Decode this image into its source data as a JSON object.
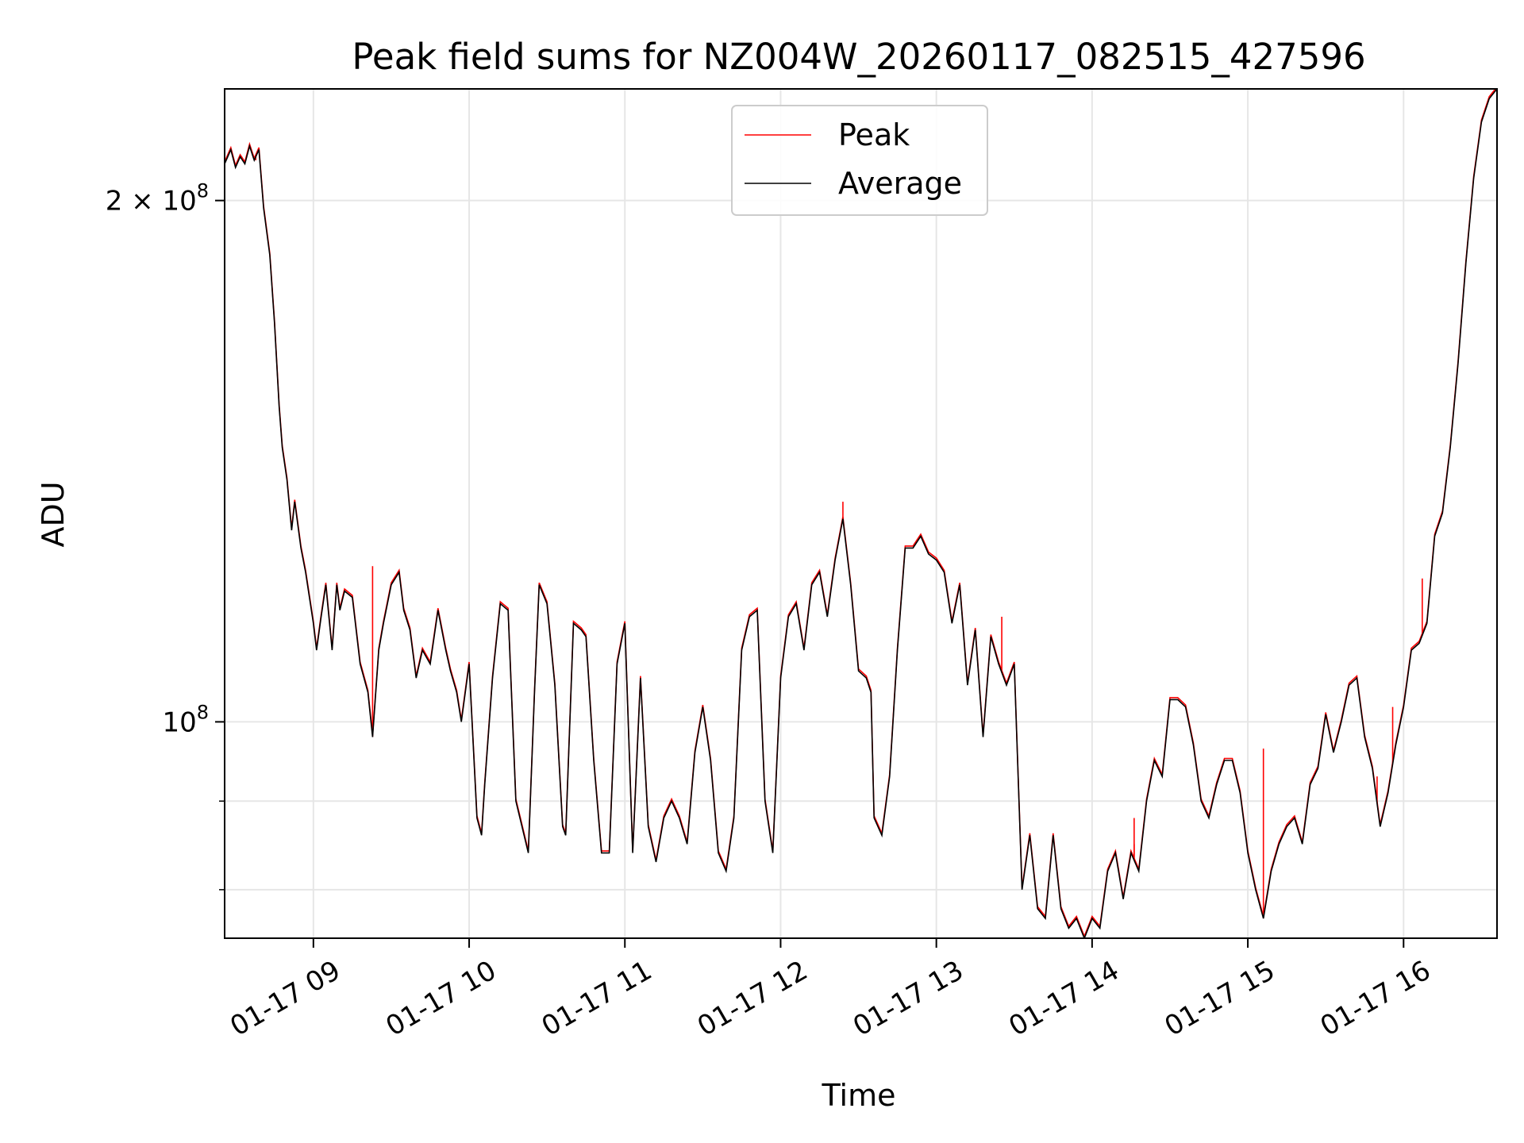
{
  "chart_data": {
    "type": "line",
    "title": "Peak field sums for NZ004W_20260117_082515_427596",
    "xlabel": "Time",
    "ylabel": "ADU",
    "yscale": "log",
    "xlim": [
      8.43,
      16.6
    ],
    "ylim": [
      75000000,
      232000000
    ],
    "grid": true,
    "legend": {
      "placement": "top-center",
      "entries": [
        "Peak",
        "Average"
      ]
    },
    "x_ticks": [
      {
        "value": 9,
        "label": "01-17 09"
      },
      {
        "value": 10,
        "label": "01-17 10"
      },
      {
        "value": 11,
        "label": "01-17 11"
      },
      {
        "value": 12,
        "label": "01-17 12"
      },
      {
        "value": 13,
        "label": "01-17 13"
      },
      {
        "value": 14,
        "label": "01-17 14"
      },
      {
        "value": 15,
        "label": "01-17 15"
      },
      {
        "value": 16,
        "label": "01-17 16"
      }
    ],
    "y_ticks": [
      {
        "value": 200000000,
        "label": "2 × 10",
        "exp": "8"
      },
      {
        "value": 100000000,
        "label": "10",
        "exp": "8"
      }
    ],
    "y_minor_ticks": [
      90000000,
      80000000
    ],
    "series": [
      {
        "name": "Peak",
        "color": "#ff0000",
        "spikes": [
          [
            8.63,
            211000000
          ],
          [
            9.38,
            123000000
          ],
          [
            12.4,
            134000000
          ],
          [
            13.42,
            115000000
          ],
          [
            14.27,
            88000000
          ],
          [
            14.27,
            85000000
          ],
          [
            15.1,
            96500000
          ],
          [
            15.83,
            93000000
          ],
          [
            15.93,
            102000000
          ],
          [
            16.12,
            121000000
          ]
        ]
      },
      {
        "name": "Average",
        "color": "#000000",
        "x": [
          8.43,
          8.47,
          8.5,
          8.53,
          8.56,
          8.59,
          8.62,
          8.65,
          8.68,
          8.72,
          8.75,
          8.78,
          8.8,
          8.83,
          8.86,
          8.88,
          8.92,
          8.95,
          9.0,
          9.02,
          9.05,
          9.08,
          9.12,
          9.15,
          9.17,
          9.2,
          9.25,
          9.3,
          9.35,
          9.38,
          9.42,
          9.45,
          9.5,
          9.55,
          9.58,
          9.62,
          9.66,
          9.7,
          9.75,
          9.8,
          9.85,
          9.88,
          9.92,
          9.95,
          10.0,
          10.05,
          10.08,
          10.1,
          10.15,
          10.2,
          10.25,
          10.3,
          10.38,
          10.42,
          10.45,
          10.5,
          10.55,
          10.6,
          10.62,
          10.67,
          10.72,
          10.75,
          10.8,
          10.85,
          10.9,
          10.95,
          11.0,
          11.05,
          11.1,
          11.15,
          11.2,
          11.25,
          11.3,
          11.35,
          11.4,
          11.45,
          11.5,
          11.55,
          11.6,
          11.65,
          11.7,
          11.75,
          11.8,
          11.85,
          11.9,
          11.95,
          12.0,
          12.05,
          12.1,
          12.15,
          12.2,
          12.25,
          12.3,
          12.35,
          12.4,
          12.45,
          12.5,
          12.55,
          12.58,
          12.6,
          12.65,
          12.7,
          12.75,
          12.8,
          12.85,
          12.9,
          12.95,
          13.0,
          13.05,
          13.1,
          13.15,
          13.2,
          13.25,
          13.3,
          13.35,
          13.4,
          13.45,
          13.5,
          13.55,
          13.6,
          13.65,
          13.7,
          13.75,
          13.8,
          13.85,
          13.9,
          13.95,
          14.0,
          14.05,
          14.1,
          14.15,
          14.2,
          14.25,
          14.3,
          14.35,
          14.4,
          14.45,
          14.5,
          14.55,
          14.6,
          14.65,
          14.7,
          14.75,
          14.8,
          14.85,
          14.9,
          14.95,
          15.0,
          15.05,
          15.1,
          15.15,
          15.2,
          15.25,
          15.3,
          15.35,
          15.4,
          15.45,
          15.5,
          15.55,
          15.6,
          15.65,
          15.7,
          15.75,
          15.8,
          15.85,
          15.9,
          15.95,
          16.0,
          16.05,
          16.1,
          16.15,
          16.2,
          16.25,
          16.3,
          16.35,
          16.4,
          16.45,
          16.5,
          16.55,
          16.6
        ],
        "values": [
          210000000,
          214000000,
          209000000,
          212000000,
          210000000,
          215000000,
          211000000,
          214000000,
          198000000,
          186000000,
          170000000,
          152000000,
          144000000,
          138000000,
          129000000,
          134000000,
          126000000,
          122000000,
          114000000,
          110000000,
          115000000,
          120000000,
          110000000,
          120000000,
          116000000,
          119000000,
          118000000,
          108000000,
          104000000,
          98000000,
          110000000,
          114000000,
          120000000,
          122000000,
          116000000,
          113000000,
          106000000,
          110000000,
          108000000,
          116000000,
          110000000,
          107000000,
          104000000,
          100000000,
          108000000,
          88000000,
          86000000,
          92000000,
          106000000,
          117000000,
          116000000,
          90000000,
          84000000,
          104000000,
          120000000,
          117000000,
          105000000,
          87000000,
          86000000,
          114000000,
          113000000,
          112000000,
          95000000,
          84000000,
          84000000,
          108000000,
          114000000,
          84000000,
          106000000,
          87000000,
          83000000,
          88000000,
          90000000,
          88000000,
          85000000,
          96000000,
          102000000,
          95000000,
          84000000,
          82000000,
          88000000,
          110000000,
          115000000,
          116000000,
          90000000,
          84000000,
          106000000,
          115000000,
          117000000,
          110000000,
          120000000,
          122000000,
          115000000,
          124000000,
          131000000,
          120000000,
          107000000,
          106000000,
          104000000,
          88000000,
          86000000,
          93000000,
          110000000,
          126000000,
          126000000,
          128000000,
          125000000,
          124000000,
          122000000,
          114000000,
          120000000,
          105000000,
          113000000,
          98000000,
          112000000,
          108000000,
          105000000,
          108000000,
          80000000,
          86000000,
          78000000,
          77000000,
          86000000,
          78000000,
          76000000,
          77000000,
          75000000,
          77000000,
          76000000,
          82000000,
          84000000,
          79000000,
          84000000,
          82000000,
          90000000,
          95000000,
          93000000,
          103000000,
          103000000,
          102000000,
          97000000,
          90000000,
          88000000,
          92000000,
          95000000,
          95000000,
          91000000,
          84000000,
          80000000,
          77000000,
          82000000,
          85000000,
          87000000,
          88000000,
          85000000,
          92000000,
          94000000,
          101000000,
          96000000,
          100000000,
          105000000,
          106000000,
          98000000,
          94000000,
          87000000,
          91000000,
          97000000,
          102000000,
          110000000,
          111000000,
          114000000,
          128000000,
          132000000,
          144000000,
          161000000,
          184000000,
          206000000,
          222000000,
          229000000,
          232000000
        ]
      }
    ]
  }
}
